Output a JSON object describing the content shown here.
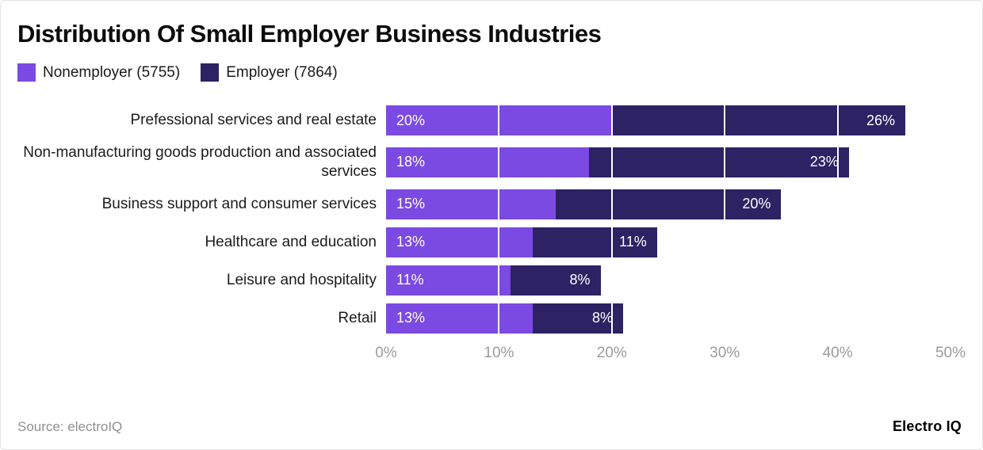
{
  "title": "Distribution Of Small Employer Business Industries",
  "legend": [
    {
      "label": "Nonemployer (5755)",
      "color": "#7B4AE2"
    },
    {
      "label": "Employer (7864)",
      "color": "#2D2263"
    }
  ],
  "chart_data": {
    "type": "bar",
    "orientation": "horizontal",
    "stacked": true,
    "categories": [
      "Prefessional services and real estate",
      "Non-manufacturing goods production and associated services",
      "Business support and consumer services",
      "Healthcare and education",
      "Leisure and hospitality",
      "Retail"
    ],
    "series": [
      {
        "name": "Nonemployer (5755)",
        "color": "#7B4AE2",
        "values": [
          20,
          18,
          15,
          13,
          11,
          13
        ]
      },
      {
        "name": "Employer (7864)",
        "color": "#2D2263",
        "values": [
          26,
          23,
          20,
          11,
          8,
          8
        ]
      }
    ],
    "value_suffix": "%",
    "x_ticks": [
      "0%",
      "10%",
      "20%",
      "30%",
      "40%",
      "50%"
    ],
    "xlim": [
      0,
      50
    ],
    "grid": "vertical-white-overlay",
    "legend_position": "top-left"
  },
  "footer": {
    "source": "Source: electroIQ",
    "brand": "Electro IQ"
  }
}
